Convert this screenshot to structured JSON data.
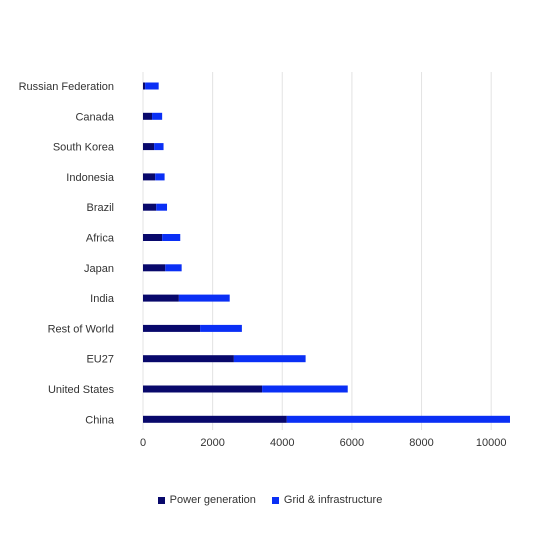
{
  "chart_data": {
    "type": "bar",
    "orientation": "horizontal",
    "stacked": true,
    "categories": [
      "Russian Federation",
      "Canada",
      "South Korea",
      "Indonesia",
      "Brazil",
      "Africa",
      "Japan",
      "India",
      "Rest of World",
      "EU27",
      "United States",
      "China"
    ],
    "series": [
      {
        "name": "Power generation",
        "color": "#08086b",
        "values": [
          60,
          260,
          320,
          350,
          380,
          550,
          640,
          1030,
          1640,
          2610,
          3420,
          4130
        ]
      },
      {
        "name": "Grid & infrastructure",
        "color": "#0a2ff5",
        "values": [
          390,
          290,
          270,
          270,
          310,
          520,
          470,
          1460,
          1200,
          2060,
          2460,
          6410
        ]
      }
    ],
    "xlim": [
      0,
      10500
    ],
    "xticks": [
      "0",
      "2000",
      "4000",
      "6000",
      "8000",
      "10000"
    ],
    "grid": true,
    "legend_position": "bottom"
  }
}
